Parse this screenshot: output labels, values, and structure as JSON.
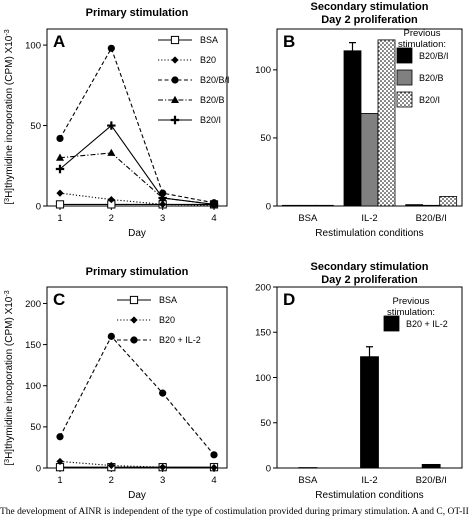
{
  "ylabel_html_parts": [
    "[",
    "3",
    "H]thymidine incoporation (CPM) X10",
    "-3"
  ],
  "caption": "The development of AINR is independent of the type of costimulation provided during primary stimulation. A and C, OT-II",
  "chart_data": [
    {
      "panel": "A",
      "type": "line",
      "title": "Primary stimulation",
      "xlabel": "Day",
      "x": [
        1,
        2,
        3,
        4
      ],
      "ylim": [
        0,
        110
      ],
      "yticks": [
        0,
        50,
        100
      ],
      "legend_position": "right",
      "series": [
        {
          "name": "BSA",
          "marker": "square-open",
          "dash": "solid",
          "values": [
            1,
            1,
            1,
            1
          ]
        },
        {
          "name": "B20",
          "marker": "diamond",
          "dash": "dotted",
          "values": [
            8,
            4,
            1,
            0.5
          ]
        },
        {
          "name": "B20/B/I",
          "marker": "circle",
          "dash": "dashed",
          "values": [
            42,
            98,
            8,
            2
          ]
        },
        {
          "name": "B20/B",
          "marker": "triangle",
          "dash": "dashdot",
          "values": [
            30,
            33,
            5,
            1
          ]
        },
        {
          "name": "B20/I",
          "marker": "plus",
          "dash": "solid",
          "values": [
            23,
            50,
            5,
            1
          ]
        }
      ]
    },
    {
      "panel": "B",
      "type": "bar",
      "title": "Secondary stimulation",
      "subtitle": "Day 2 proliferation",
      "xlabel": "Restimulation conditions",
      "categories": [
        "BSA",
        "IL-2",
        "B20/B/I"
      ],
      "ylim": [
        0,
        130
      ],
      "yticks": [
        0,
        50,
        100
      ],
      "legend_title": "Previous\nstimulation:",
      "legend_position": "right",
      "series": [
        {
          "name": "B20/B/I",
          "fill": "#000000",
          "values": [
            0.5,
            114,
            1
          ],
          "error": [
            0,
            6,
            0
          ]
        },
        {
          "name": "B20/B",
          "fill": "#808080",
          "values": [
            0.5,
            68,
            0.5
          ],
          "error": [
            0,
            0,
            0
          ]
        },
        {
          "name": "B20/I",
          "fill": "dots",
          "values": [
            0.5,
            122,
            7
          ],
          "error": [
            0,
            0,
            0
          ]
        }
      ]
    },
    {
      "panel": "C",
      "type": "line",
      "title": "Primary stimulation",
      "xlabel": "Day",
      "x": [
        1,
        2,
        3,
        4
      ],
      "ylim": [
        0,
        220
      ],
      "yticks": [
        0,
        50,
        100,
        150,
        200
      ],
      "legend_position": "right",
      "series": [
        {
          "name": "BSA",
          "marker": "square-open",
          "dash": "solid",
          "values": [
            1,
            1,
            1,
            1
          ]
        },
        {
          "name": "B20",
          "marker": "diamond",
          "dash": "dotted",
          "values": [
            8,
            3,
            1,
            0.5
          ]
        },
        {
          "name": "B20 + IL-2",
          "marker": "circle",
          "dash": "dashed",
          "values": [
            38,
            160,
            91,
            16
          ]
        }
      ]
    },
    {
      "panel": "D",
      "type": "bar",
      "title": "Secondary stimulation",
      "subtitle": "Day 2 proliferation",
      "xlabel": "Restimulation conditions",
      "categories": [
        "BSA",
        "IL-2",
        "B20/B/I"
      ],
      "ylim": [
        0,
        200
      ],
      "yticks": [
        0,
        50,
        100,
        150,
        200
      ],
      "legend_title": "Previous\nstimulation:",
      "legend_position": "top-right",
      "series": [
        {
          "name": "B20 + IL-2",
          "fill": "#000000",
          "values": [
            0.5,
            123,
            4
          ],
          "error": [
            0,
            11,
            0
          ]
        }
      ]
    }
  ]
}
